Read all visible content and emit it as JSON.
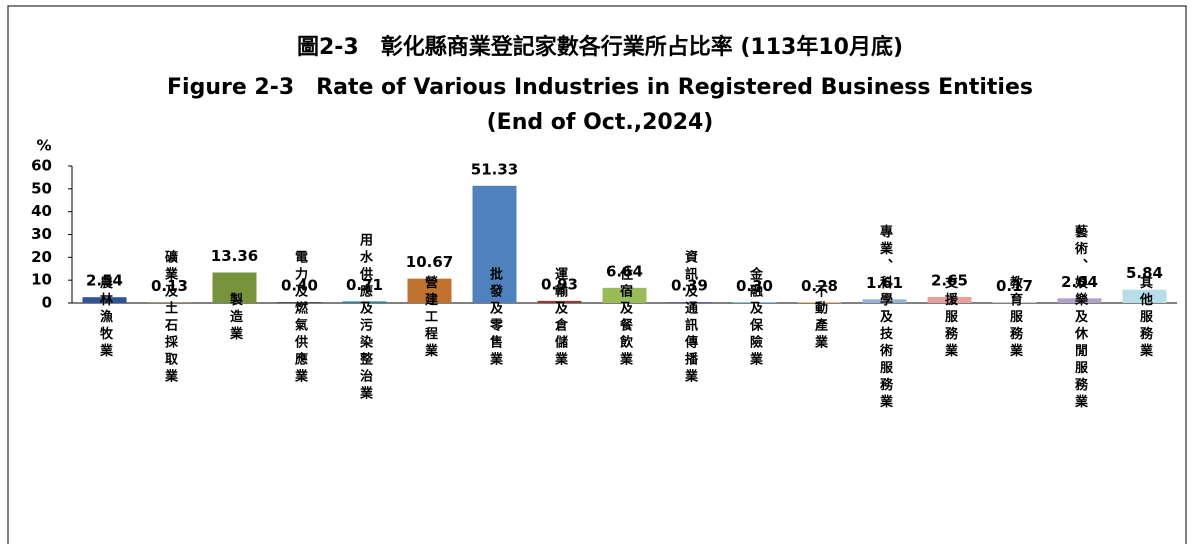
{
  "chart_data": {
    "type": "bar",
    "title": "圖2-3　彰化縣商業登記家數各行業所占比率 (113年10月底)",
    "subtitle": [
      "Figure 2-3　Rate of Various Industries in Registered Business Entities",
      "(End of Oct.,2024)"
    ],
    "y_label": "%",
    "categories": [
      "農林漁牧業",
      "礦業及土石採取業",
      "製造業",
      "電力及燃氣供應業",
      "用水供應及污染整治業",
      "營建工程業",
      "批發及零售業",
      "運輸及倉儲業",
      "住宿及餐飲業",
      "資訊及通訊傳播業",
      "金融及保險業",
      "不動產業",
      "專業、科學及技術服務業",
      "支援服務業",
      "教育服務業",
      "藝術、娛樂及休閒服務業",
      "其他服務業"
    ],
    "values": [
      2.54,
      0.13,
      13.36,
      0.4,
      0.71,
      10.67,
      51.33,
      0.93,
      6.64,
      0.39,
      0.3,
      0.28,
      1.61,
      2.65,
      0.17,
      2.04,
      5.84
    ],
    "value_labels": [
      "2.54",
      "0.13",
      "13.36",
      "0.40",
      "0.71",
      "10.67",
      "51.33",
      "0.93",
      "6.64",
      "0.39",
      "0.30",
      "0.28",
      "1.61",
      "2.65",
      "0.17",
      "2.04",
      "5.84"
    ],
    "colors": [
      "#2f5597",
      "#7f6000",
      "#77933c",
      "#404040",
      "#31859c",
      "#c0722f",
      "#4f81bd",
      "#953735",
      "#9bbb59",
      "#604a7b",
      "#4bacc6",
      "#e3a048",
      "#95b3d7",
      "#e6a0a0",
      "#bfbfbf",
      "#b3a2c7",
      "#b7dee8"
    ],
    "ylim": [
      0,
      60
    ],
    "yticks": [
      0,
      10,
      20,
      30,
      40,
      50,
      60
    ],
    "grid": false
  }
}
